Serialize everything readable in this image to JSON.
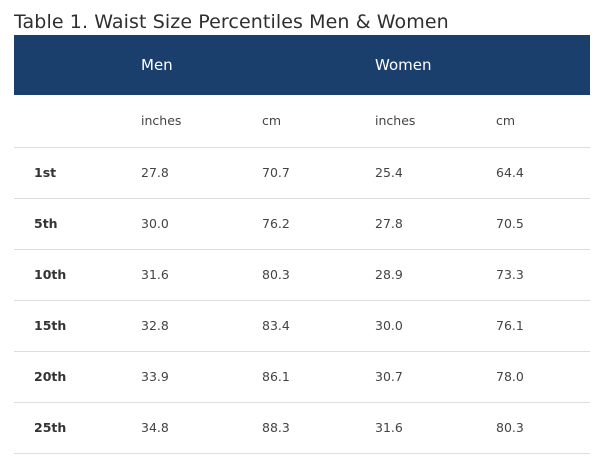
{
  "title": "Table 1. Waist Size Percentiles Men & Women",
  "groups": {
    "men": "Men",
    "women": "Women"
  },
  "units": {
    "men_inches": "inches",
    "men_cm": "cm",
    "women_inches": "inches",
    "women_cm": "cm"
  },
  "rows": [
    {
      "percentile": "1st",
      "men_in": "27.8",
      "men_cm": "70.7",
      "women_in": "25.4",
      "women_cm": "64.4"
    },
    {
      "percentile": "5th",
      "men_in": "30.0",
      "men_cm": "76.2",
      "women_in": "27.8",
      "women_cm": "70.5"
    },
    {
      "percentile": "10th",
      "men_in": "31.6",
      "men_cm": "80.3",
      "women_in": "28.9",
      "women_cm": "73.3"
    },
    {
      "percentile": "15th",
      "men_in": "32.8",
      "men_cm": "83.4",
      "women_in": "30.0",
      "women_cm": "76.1"
    },
    {
      "percentile": "20th",
      "men_in": "33.9",
      "men_cm": "86.1",
      "women_in": "30.7",
      "women_cm": "78.0"
    },
    {
      "percentile": "25th",
      "men_in": "34.8",
      "men_cm": "88.3",
      "women_in": "31.6",
      "women_cm": "80.3"
    }
  ],
  "colors": {
    "header_bg": "#1b3f6c",
    "header_text": "#ffffff",
    "divider": "#dddddd"
  }
}
